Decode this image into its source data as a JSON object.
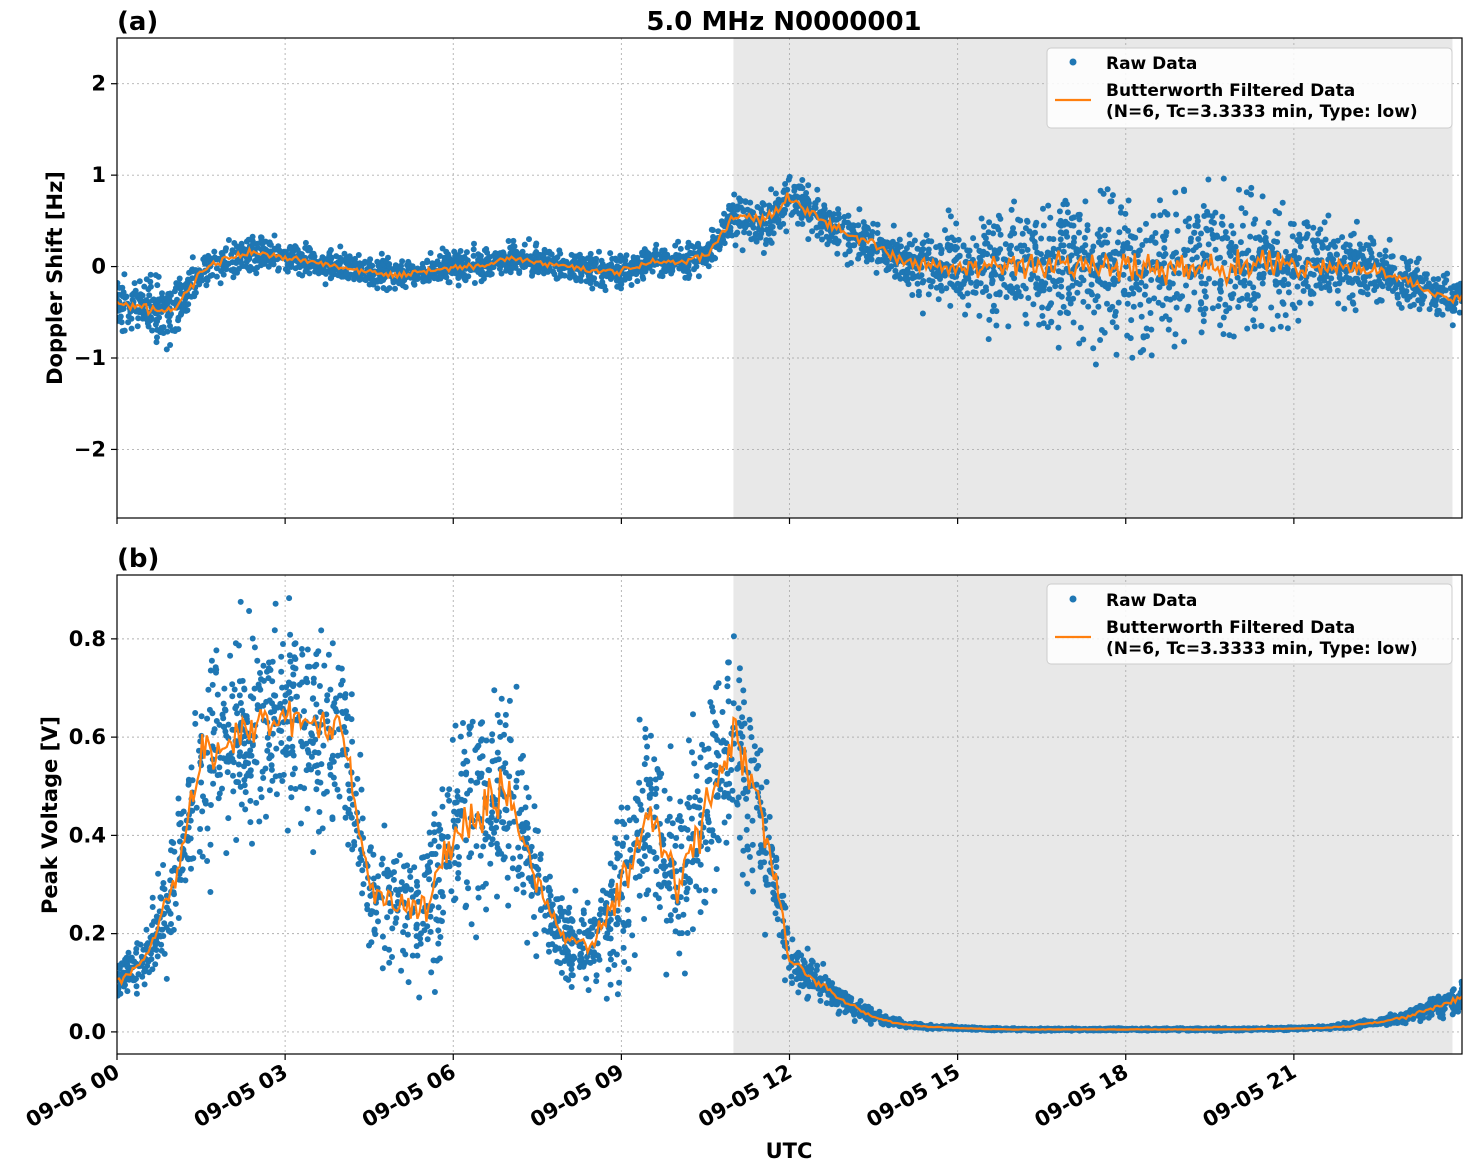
{
  "chart_data": [
    {
      "panel_label": "(a)",
      "title": "5.0 MHz N0000001",
      "type": "scatter",
      "ylabel": "Doppler Shift [Hz]",
      "xlabel": "",
      "x_unit_hours_from": "09-05 00",
      "xlim": [
        0,
        24
      ],
      "ylim": [
        -2.75,
        2.5
      ],
      "yticks": [
        -2,
        -1,
        0,
        1,
        2
      ],
      "ytick_labels": [
        "−2",
        "−1",
        "0",
        "1",
        "2"
      ],
      "grid": true,
      "legend_position": "top-right",
      "shaded_region": [
        11,
        23.83
      ],
      "colors": {
        "raw": "#1f77b4",
        "filtered": "#ff7f0e",
        "shade": "#e8e8e8"
      },
      "series": [
        {
          "name": "Raw Data",
          "kind": "scatter",
          "x_hours": [
            0,
            0.5,
            1,
            1.5,
            2,
            2.5,
            3,
            3.5,
            4,
            4.5,
            5,
            5.5,
            6,
            6.5,
            7,
            7.5,
            8,
            8.5,
            9,
            9.5,
            10,
            10.5,
            11,
            11.5,
            12,
            12.5,
            13,
            13.5,
            14,
            14.5,
            15,
            15.5,
            16,
            16.5,
            17,
            17.5,
            18,
            18.5,
            19,
            19.5,
            20,
            20.5,
            21,
            21.5,
            22,
            22.5,
            23,
            23.5,
            24
          ],
          "center": [
            -0.4,
            -0.45,
            -0.5,
            -0.05,
            0.1,
            0.15,
            0.1,
            0.05,
            0,
            -0.05,
            -0.1,
            -0.05,
            0,
            0,
            0.1,
            0.05,
            0,
            -0.05,
            -0.05,
            0.05,
            0.05,
            0.1,
            0.55,
            0.5,
            0.75,
            0.55,
            0.35,
            0.25,
            0.05,
            0,
            0,
            0,
            0,
            0,
            0,
            0,
            0,
            0,
            0,
            0,
            0,
            0,
            0,
            0,
            0,
            -0.05,
            -0.15,
            -0.3,
            -0.35
          ],
          "spread": [
            0.35,
            0.35,
            0.4,
            0.25,
            0.25,
            0.25,
            0.2,
            0.2,
            0.2,
            0.2,
            0.2,
            0.2,
            0.2,
            0.2,
            0.2,
            0.2,
            0.2,
            0.2,
            0.2,
            0.2,
            0.2,
            0.25,
            0.3,
            0.35,
            0.35,
            0.3,
            0.3,
            0.3,
            0.4,
            0.5,
            0.6,
            0.75,
            0.85,
            0.9,
            0.95,
            1.0,
            1.0,
            1.0,
            1.0,
            1.0,
            0.95,
            0.85,
            0.7,
            0.6,
            0.5,
            0.4,
            0.35,
            0.3,
            0.3
          ]
        },
        {
          "name": "Butterworth Filtered Data",
          "name_line2": "(N=6, Tc=3.3333 min, Type: low)",
          "kind": "line",
          "x_hours": [
            0,
            0.5,
            1,
            1.5,
            2,
            2.5,
            3,
            3.5,
            4,
            4.5,
            5,
            5.5,
            6,
            6.5,
            7,
            7.5,
            8,
            8.5,
            9,
            9.5,
            10,
            10.5,
            11,
            11.5,
            12,
            12.5,
            13,
            13.5,
            14,
            14.5,
            15,
            15.5,
            16,
            16.5,
            17,
            17.5,
            18,
            18.5,
            19,
            19.5,
            20,
            20.5,
            21,
            21.5,
            22,
            22.5,
            23,
            23.5,
            24
          ],
          "y": [
            -0.4,
            -0.45,
            -0.5,
            -0.05,
            0.1,
            0.15,
            0.1,
            0.05,
            0,
            -0.05,
            -0.1,
            -0.05,
            0,
            0,
            0.1,
            0.05,
            0,
            -0.05,
            -0.05,
            0.05,
            0.05,
            0.1,
            0.55,
            0.5,
            0.75,
            0.55,
            0.35,
            0.25,
            0.05,
            0,
            0,
            0,
            0,
            0,
            0,
            0,
            0,
            0,
            0,
            0,
            0,
            0,
            0,
            0,
            0,
            -0.05,
            -0.15,
            -0.3,
            -0.35
          ]
        }
      ]
    },
    {
      "panel_label": "(b)",
      "title": "",
      "type": "scatter",
      "ylabel": "Peak Voltage [V]",
      "xlabel": "UTC",
      "x_unit_hours_from": "09-05 00",
      "xlim": [
        0,
        24
      ],
      "ylim": [
        -0.045,
        0.93
      ],
      "yticks": [
        0.0,
        0.2,
        0.4,
        0.6,
        0.8
      ],
      "ytick_labels": [
        "0.0",
        "0.2",
        "0.4",
        "0.6",
        "0.8"
      ],
      "xticks_hours": [
        0,
        3,
        6,
        9,
        12,
        15,
        18,
        21
      ],
      "xtick_labels": [
        "09-05 00",
        "09-05 03",
        "09-05 06",
        "09-05 09",
        "09-05 12",
        "09-05 15",
        "09-05 18",
        "09-05 21"
      ],
      "grid": true,
      "legend_position": "top-right",
      "shaded_region": [
        11,
        23.83
      ],
      "colors": {
        "raw": "#1f77b4",
        "filtered": "#ff7f0e",
        "shade": "#e8e8e8"
      },
      "series": [
        {
          "name": "Raw Data",
          "kind": "scatter",
          "x_hours": [
            0,
            0.5,
            1,
            1.5,
            2,
            2.5,
            3,
            3.5,
            4,
            4.5,
            5,
            5.5,
            6,
            6.5,
            7,
            7.5,
            8,
            8.5,
            9,
            9.5,
            10,
            10.5,
            11,
            11.5,
            12,
            12.5,
            13,
            13.5,
            14,
            14.5,
            15,
            15.5,
            16,
            16.5,
            17,
            17.5,
            18,
            18.5,
            19,
            19.5,
            20,
            20.5,
            21,
            21.5,
            22,
            22.5,
            23,
            23.5,
            24
          ],
          "center": [
            0.1,
            0.15,
            0.3,
            0.55,
            0.6,
            0.62,
            0.65,
            0.63,
            0.62,
            0.3,
            0.25,
            0.25,
            0.4,
            0.45,
            0.5,
            0.3,
            0.18,
            0.18,
            0.3,
            0.45,
            0.3,
            0.45,
            0.6,
            0.45,
            0.15,
            0.1,
            0.06,
            0.03,
            0.015,
            0.01,
            0.008,
            0.006,
            0.005,
            0.005,
            0.005,
            0.005,
            0.005,
            0.005,
            0.005,
            0.005,
            0.005,
            0.006,
            0.007,
            0.008,
            0.012,
            0.02,
            0.03,
            0.05,
            0.07
          ],
          "spread": [
            0.05,
            0.07,
            0.15,
            0.25,
            0.25,
            0.25,
            0.25,
            0.25,
            0.25,
            0.15,
            0.15,
            0.2,
            0.28,
            0.3,
            0.3,
            0.15,
            0.1,
            0.12,
            0.25,
            0.3,
            0.2,
            0.3,
            0.25,
            0.2,
            0.08,
            0.05,
            0.03,
            0.015,
            0.008,
            0.005,
            0.004,
            0.003,
            0.003,
            0.003,
            0.003,
            0.003,
            0.003,
            0.003,
            0.003,
            0.003,
            0.003,
            0.003,
            0.004,
            0.005,
            0.007,
            0.01,
            0.015,
            0.025,
            0.035
          ]
        },
        {
          "name": "Butterworth Filtered Data",
          "name_line2": "(N=6, Tc=3.3333 min, Type: low)",
          "kind": "line",
          "x_hours": [
            0,
            0.5,
            1,
            1.5,
            2,
            2.5,
            3,
            3.5,
            4,
            4.5,
            5,
            5.5,
            6,
            6.5,
            7,
            7.5,
            8,
            8.5,
            9,
            9.5,
            10,
            10.5,
            11,
            11.5,
            12,
            12.5,
            13,
            13.5,
            14,
            14.5,
            15,
            15.5,
            16,
            16.5,
            17,
            17.5,
            18,
            18.5,
            19,
            19.5,
            20,
            20.5,
            21,
            21.5,
            22,
            22.5,
            23,
            23.5,
            24
          ],
          "y": [
            0.1,
            0.15,
            0.3,
            0.55,
            0.6,
            0.62,
            0.65,
            0.63,
            0.62,
            0.3,
            0.25,
            0.25,
            0.4,
            0.45,
            0.5,
            0.3,
            0.18,
            0.18,
            0.3,
            0.45,
            0.3,
            0.45,
            0.6,
            0.45,
            0.15,
            0.1,
            0.06,
            0.03,
            0.015,
            0.01,
            0.008,
            0.006,
            0.005,
            0.005,
            0.005,
            0.005,
            0.005,
            0.005,
            0.005,
            0.005,
            0.005,
            0.006,
            0.007,
            0.008,
            0.012,
            0.02,
            0.03,
            0.05,
            0.07
          ]
        }
      ]
    }
  ]
}
